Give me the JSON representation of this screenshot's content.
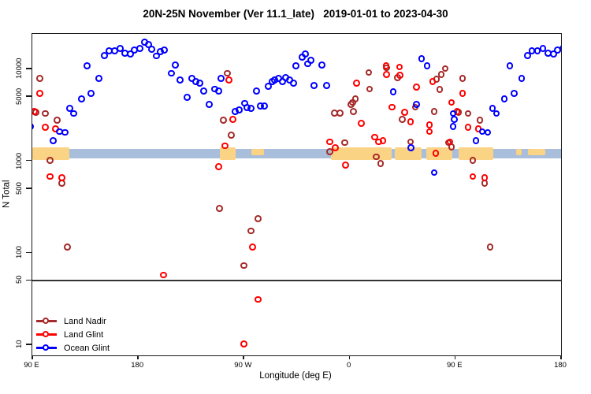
{
  "chart_data": {
    "type": "scatter",
    "title": "20N-25N November (Ver 11.1_late)   2019-01-01 to 2023-04-30",
    "xlabel": "Longitude (deg E)",
    "ylabel": "N Total",
    "x_axis": {
      "range_deg": [
        90,
        540
      ],
      "note": "longitude axis runs 90E eastward around the globe to 180 (450 deg span); data with lon<=184 is drawn again +360 deg",
      "wrap_duplicate_max_lon": 184,
      "ticks": [
        {
          "lon": 90,
          "label": "90 E"
        },
        {
          "lon": 180,
          "label": "180"
        },
        {
          "lon": 270,
          "label": "90 W"
        },
        {
          "lon": 360,
          "label": "0"
        },
        {
          "lon": 450,
          "label": "90 E"
        },
        {
          "lon": 540,
          "label": "180"
        }
      ]
    },
    "y_axis": {
      "scale": "log10",
      "range": [
        10,
        24000
      ],
      "ticks": [
        {
          "n": 10,
          "label": "10"
        },
        {
          "n": 50,
          "label": "50"
        },
        {
          "n": 100,
          "label": "100"
        },
        {
          "n": 500,
          "label": "500"
        },
        {
          "n": 1000,
          "label": "1000"
        },
        {
          "n": 5000,
          "label": "5000"
        },
        {
          "n": 10000,
          "label": "10000"
        }
      ]
    },
    "hline_n": 50,
    "map_band": {
      "ocean_color": "#A9BEDB",
      "land_color": "#FAD385",
      "center_n": 1200,
      "land_segments": [
        {
          "lon_start": 90,
          "lon_end": 121.5,
          "thin": false
        },
        {
          "lon_start": 249.8,
          "lon_end": 263.3,
          "thin": false
        },
        {
          "lon_start": 276.7,
          "lon_end": 287.4,
          "thin": true
        },
        {
          "lon_start": 343.9,
          "lon_end": 395.6,
          "thin": false
        },
        {
          "lon_start": 398.3,
          "lon_end": 421.1,
          "thin": false
        },
        {
          "lon_start": 425.1,
          "lon_end": 447.3,
          "thin": false
        },
        {
          "lon_start": 452.7,
          "lon_end": 482.3,
          "thin": false
        },
        {
          "lon_start": 502.0,
          "lon_end": 506.5,
          "thin": true
        },
        {
          "lon_start": 512.0,
          "lon_end": 526.5,
          "thin": true
        }
      ]
    },
    "series": [
      {
        "name": "Land Nadir",
        "color": "#A52A2A",
        "points": [
          [
            96.7,
            7800
          ],
          [
            93.4,
            3350
          ],
          [
            101.4,
            3250
          ],
          [
            111.5,
            2750
          ],
          [
            105.4,
            1000
          ],
          [
            115.5,
            570
          ],
          [
            120.2,
            115
          ],
          [
            256.6,
            8900
          ],
          [
            253.2,
            2750
          ],
          [
            259.9,
            1900
          ],
          [
            249.8,
            300
          ],
          [
            282.8,
            235
          ],
          [
            276.7,
            172
          ],
          [
            270.7,
            72
          ],
          [
            343.9,
            1250
          ],
          [
            347.9,
            3300
          ],
          [
            352.6,
            3300
          ],
          [
            356.6,
            1570
          ],
          [
            362.0,
            4100
          ],
          [
            363.0,
            4300
          ],
          [
            365.4,
            4700
          ],
          [
            364.0,
            3400
          ],
          [
            376.8,
            9100
          ],
          [
            377.5,
            6000
          ],
          [
            383.5,
            1100
          ],
          [
            386.9,
            930
          ],
          [
            392.2,
            10200
          ],
          [
            401.6,
            8000
          ],
          [
            405.6,
            2800
          ],
          [
            412.4,
            1600
          ],
          [
            416.4,
            3800
          ],
          [
            432.5,
            3400
          ],
          [
            434.5,
            7700
          ],
          [
            437.2,
            5900
          ],
          [
            438.6,
            8700
          ],
          [
            441.9,
            10000
          ],
          [
            444.6,
            1570
          ],
          [
            447.3,
            1400
          ]
        ]
      },
      {
        "name": "Land Glint",
        "color": "#FF0000",
        "points": [
          [
            96.7,
            5400
          ],
          [
            92.0,
            3400
          ],
          [
            101.4,
            2300
          ],
          [
            110.1,
            2200
          ],
          [
            105.4,
            670
          ],
          [
            115.5,
            650
          ],
          [
            202.2,
            57
          ],
          [
            249.2,
            860
          ],
          [
            254.6,
            1450
          ],
          [
            257.9,
            7500
          ],
          [
            261.3,
            2800
          ],
          [
            270.7,
            10.2
          ],
          [
            278.1,
            115
          ],
          [
            282.8,
            31
          ],
          [
            343.9,
            1600
          ],
          [
            348.6,
            1380
          ],
          [
            357.3,
            890
          ],
          [
            366.7,
            7000
          ],
          [
            370.7,
            2550
          ],
          [
            382.1,
            1800
          ],
          [
            385.5,
            1600
          ],
          [
            388.9,
            1650
          ],
          [
            391.6,
            10700
          ],
          [
            392.2,
            8700
          ],
          [
            396.9,
            3800
          ],
          [
            403.0,
            10400
          ],
          [
            403.2,
            8500
          ],
          [
            407.6,
            3350
          ],
          [
            412.4,
            2650
          ],
          [
            417.7,
            6300
          ],
          [
            428.5,
            2450
          ],
          [
            428.6,
            2070
          ],
          [
            431.2,
            7200
          ],
          [
            433.9,
            1200
          ],
          [
            446.0,
            1600
          ],
          [
            447.3,
            4300
          ]
        ]
      },
      {
        "name": "Ocean Glint",
        "color": "#0000FF",
        "points": [
          [
            88.7,
            2350
          ],
          [
            108.1,
            1650
          ],
          [
            113.5,
            2070
          ],
          [
            118.2,
            2030
          ],
          [
            122.2,
            3700
          ],
          [
            125.6,
            3250
          ],
          [
            132.3,
            4700
          ],
          [
            137.0,
            10700
          ],
          [
            140.4,
            5400
          ],
          [
            147.1,
            7800
          ],
          [
            151.8,
            13900
          ],
          [
            155.8,
            15700
          ],
          [
            160.5,
            15700
          ],
          [
            165.2,
            16600
          ],
          [
            169.3,
            14800
          ],
          [
            174.0,
            14500
          ],
          [
            177.3,
            15900
          ],
          [
            182.0,
            16600
          ],
          [
            186.1,
            19500
          ],
          [
            189.4,
            18200
          ],
          [
            192.1,
            16300
          ],
          [
            196.1,
            13700
          ],
          [
            199.5,
            15400
          ],
          [
            202.8,
            15900
          ],
          [
            208.9,
            8900
          ],
          [
            212.2,
            10900
          ],
          [
            216.3,
            7500
          ],
          [
            222.3,
            4900
          ],
          [
            226.3,
            7800
          ],
          [
            229.7,
            7200
          ],
          [
            233.0,
            7000
          ],
          [
            236.4,
            5700
          ],
          [
            241.1,
            4100
          ],
          [
            245.8,
            6000
          ],
          [
            249.2,
            5700
          ],
          [
            251.2,
            7800
          ],
          [
            263.3,
            3400
          ],
          [
            266.6,
            3550
          ],
          [
            271.3,
            4200
          ],
          [
            273.4,
            3750
          ],
          [
            276.7,
            3700
          ],
          [
            281.4,
            5700
          ],
          [
            284.8,
            3900
          ],
          [
            288.1,
            3900
          ],
          [
            291.5,
            6400
          ],
          [
            294.8,
            7200
          ],
          [
            296.9,
            7500
          ],
          [
            300.2,
            7800
          ],
          [
            303.6,
            7200
          ],
          [
            306.3,
            8000
          ],
          [
            309.6,
            7500
          ],
          [
            313.0,
            7000
          ],
          [
            315.0,
            10700
          ],
          [
            320.4,
            13400
          ],
          [
            323.1,
            14500
          ],
          [
            325.1,
            11300
          ],
          [
            327.8,
            12300
          ],
          [
            330.5,
            6600
          ],
          [
            337.2,
            10900
          ],
          [
            341.2,
            6600
          ],
          [
            397.6,
            5600
          ],
          [
            413.0,
            1380
          ],
          [
            417.7,
            4100
          ],
          [
            421.8,
            12800
          ],
          [
            426.5,
            10700
          ],
          [
            432.5,
            740
          ],
          [
            448.6,
            3250
          ],
          [
            449.5,
            2800
          ]
        ]
      }
    ]
  },
  "legend": {
    "items": [
      {
        "label": "Land Nadir",
        "color": "#A52A2A"
      },
      {
        "label": "Land Glint",
        "color": "#FF0000"
      },
      {
        "label": "Ocean Glint",
        "color": "#0000FF"
      }
    ]
  }
}
